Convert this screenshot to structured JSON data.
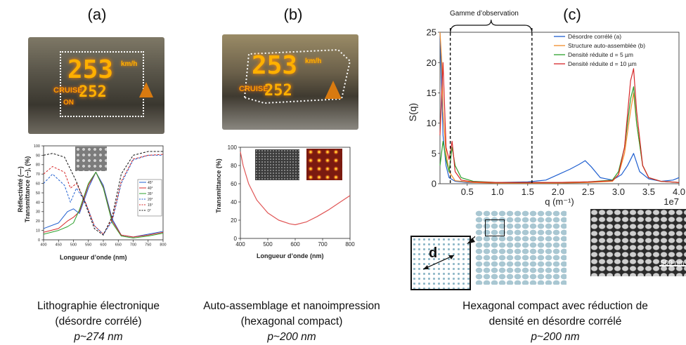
{
  "panels": {
    "a": {
      "label": "(a)",
      "hud": {
        "speed": "253",
        "unit": "km/h",
        "cruise": "CRUISE",
        "set_speed": "252",
        "on": "ON"
      },
      "chart_ylabel": "Réflectivité (—)\nTransmittance (--), (%)",
      "chart_xlabel": "Longueur d’onde (nm)",
      "caption": [
        "Lithographie électronique",
        "(désordre corrélé)",
        "p~274 nm"
      ]
    },
    "b": {
      "label": "(b)",
      "hud": {
        "speed": "253",
        "unit": "km/h",
        "cruise": "CRUISE",
        "set_speed": "252"
      },
      "chart_ylabel": "Transmittance (%)",
      "chart_xlabel": "Longueur d’onde (nm)",
      "caption": [
        "Auto-assemblage et nanoimpression",
        "(hexagonal compact)",
        "p~200 nm"
      ]
    },
    "c": {
      "label": "(c)",
      "observation_label": "Gamme d’observation",
      "d_label": "d",
      "scale_bar": "500 nm",
      "caption": [
        "Hexagonal compact avec réduction de",
        "densité en désordre corrélé",
        "p~200 nm"
      ]
    }
  },
  "colors": {
    "blue": "#1f5fd0",
    "orange": "#f28c28",
    "green": "#2ca02c",
    "red": "#d62728",
    "teal": "#3b8fbf"
  },
  "chart_data": [
    {
      "type": "line",
      "id": "a",
      "xlabel": "Longueur d’onde (nm)",
      "ylabel": "Réflectivité (—) Transmittance (--), (%)",
      "xlim": [
        400,
        800
      ],
      "ylim": [
        0,
        100
      ],
      "xticks": [
        400,
        450,
        500,
        550,
        600,
        650,
        700,
        750,
        800
      ],
      "yticks": [
        0,
        10,
        20,
        30,
        40,
        50,
        60,
        70,
        80,
        90,
        100
      ],
      "legend": [
        "45°",
        "40°",
        "35°",
        "20°",
        "15°",
        "0°"
      ],
      "legend_position": "right",
      "series": [
        {
          "name": "45°",
          "color": "#1f5fd0",
          "style": "solid",
          "x": [
            400,
            450,
            480,
            500,
            520,
            550,
            575,
            600,
            630,
            660,
            700,
            750,
            800
          ],
          "y": [
            12,
            18,
            30,
            33,
            28,
            55,
            72,
            58,
            22,
            5,
            3,
            6,
            9
          ]
        },
        {
          "name": "40°",
          "color": "#d62728",
          "style": "solid",
          "x": [
            400,
            450,
            480,
            500,
            520,
            550,
            575,
            600,
            630,
            660,
            700,
            750,
            800
          ],
          "y": [
            8,
            12,
            20,
            24,
            30,
            58,
            72,
            56,
            20,
            5,
            3,
            5,
            8
          ]
        },
        {
          "name": "35°",
          "color": "#2ca02c",
          "style": "solid",
          "x": [
            400,
            450,
            480,
            500,
            520,
            550,
            575,
            600,
            630,
            660,
            700,
            750,
            800
          ],
          "y": [
            6,
            10,
            14,
            18,
            32,
            60,
            72,
            55,
            18,
            4,
            2,
            4,
            7
          ]
        },
        {
          "name": "20°",
          "color": "#1f5fd0",
          "style": "dashed",
          "x": [
            400,
            430,
            470,
            490,
            510,
            540,
            570,
            600,
            630,
            660,
            700,
            750,
            800
          ],
          "y": [
            60,
            70,
            58,
            40,
            55,
            40,
            15,
            6,
            20,
            60,
            85,
            90,
            90
          ]
        },
        {
          "name": "15°",
          "color": "#d62728",
          "style": "dashed",
          "x": [
            400,
            430,
            470,
            490,
            510,
            540,
            570,
            600,
            630,
            660,
            700,
            750,
            800
          ],
          "y": [
            70,
            78,
            72,
            55,
            60,
            40,
            15,
            6,
            22,
            62,
            86,
            90,
            91
          ]
        },
        {
          "name": "0°",
          "color": "#111111",
          "style": "dashed",
          "x": [
            400,
            430,
            470,
            490,
            510,
            540,
            570,
            600,
            630,
            660,
            700,
            750,
            800
          ],
          "y": [
            90,
            92,
            88,
            75,
            62,
            38,
            12,
            5,
            25,
            70,
            90,
            94,
            94
          ]
        }
      ]
    },
    {
      "type": "line",
      "id": "b",
      "xlabel": "Longueur d’onde (nm)",
      "ylabel": "Transmittance (%)",
      "xlim": [
        400,
        800
      ],
      "ylim": [
        0,
        100
      ],
      "xticks": [
        400,
        500,
        600,
        700,
        800
      ],
      "yticks": [
        0,
        20,
        40,
        60,
        80,
        100
      ],
      "series": [
        {
          "color": "#e05555",
          "x": [
            400,
            410,
            430,
            460,
            500,
            540,
            580,
            600,
            640,
            680,
            720,
            760,
            800
          ],
          "y": [
            95,
            80,
            60,
            42,
            28,
            20,
            16,
            15,
            18,
            24,
            31,
            39,
            47
          ]
        }
      ]
    },
    {
      "type": "line",
      "id": "c",
      "xlabel": "q (m⁻¹)",
      "ylabel": "S(q)",
      "x_exponent": "1e7",
      "xlim": [
        0.05,
        4.0
      ],
      "ylim": [
        0,
        25
      ],
      "xticks": [
        0.5,
        1.0,
        1.5,
        2.0,
        2.5,
        3.0,
        3.5,
        4.0
      ],
      "yticks": [
        0,
        5,
        10,
        15,
        20,
        25
      ],
      "observation_range": [
        0.22,
        1.57
      ],
      "legend_position": "top-right",
      "series": [
        {
          "name": "Désordre corrélé (a)",
          "color": "#1f5fd0",
          "x": [
            0.05,
            0.08,
            0.1,
            0.15,
            0.2,
            0.3,
            0.5,
            1.0,
            1.5,
            1.8,
            2.0,
            2.2,
            2.35,
            2.45,
            2.55,
            2.7,
            2.9,
            3.05,
            3.15,
            3.25,
            3.35,
            3.5,
            3.7,
            3.9,
            4.0
          ],
          "y": [
            25,
            15,
            8,
            3,
            1,
            0.4,
            0.2,
            0.2,
            0.3,
            0.6,
            1.5,
            2.4,
            3.2,
            3.8,
            2.8,
            1.0,
            0.6,
            1.5,
            3.0,
            5.0,
            2.0,
            0.8,
            0.4,
            0.6,
            1.0
          ]
        },
        {
          "name": "Structure auto-assemblée (b)",
          "color": "#f28c28",
          "x": [
            0.05,
            0.08,
            0.1,
            0.15,
            0.2,
            0.3,
            0.6,
            1.0,
            1.5,
            2.0,
            2.5,
            2.9,
            3.0,
            3.1,
            3.2,
            3.25,
            3.3,
            3.4,
            3.5,
            3.7,
            4.0
          ],
          "y": [
            25,
            20,
            12,
            5,
            2,
            0.5,
            0.2,
            0.1,
            0.1,
            0.1,
            0.2,
            0.4,
            1.5,
            5.0,
            12,
            15,
            10,
            3,
            1,
            0.4,
            0.2
          ]
        },
        {
          "name": "Densité réduite d = 5 µm",
          "color": "#2ca02c",
          "x": [
            0.05,
            0.1,
            0.15,
            0.2,
            0.25,
            0.3,
            0.4,
            0.6,
            1.0,
            1.5,
            2.0,
            2.5,
            2.9,
            3.0,
            3.1,
            3.2,
            3.25,
            3.3,
            3.4,
            3.5,
            3.7,
            4.0
          ],
          "y": [
            3,
            7,
            4,
            2,
            6,
            3,
            1,
            0.4,
            0.2,
            0.2,
            0.2,
            0.3,
            0.6,
            2,
            6,
            14,
            16,
            10,
            3,
            1,
            0.4,
            0.2
          ]
        },
        {
          "name": "Densité réduite d = 10 µm",
          "color": "#d62728",
          "x": [
            0.05,
            0.1,
            0.15,
            0.2,
            0.25,
            0.3,
            0.4,
            0.6,
            1.0,
            1.5,
            2.0,
            2.5,
            2.9,
            3.0,
            3.1,
            3.2,
            3.25,
            3.3,
            3.4,
            3.5,
            3.7,
            4.0
          ],
          "y": [
            8,
            20,
            6,
            4,
            7,
            2,
            0.6,
            0.3,
            0.2,
            0.2,
            0.2,
            0.3,
            0.5,
            1.5,
            6,
            17,
            19,
            12,
            3,
            1,
            0.4,
            0.2
          ]
        }
      ]
    }
  ]
}
